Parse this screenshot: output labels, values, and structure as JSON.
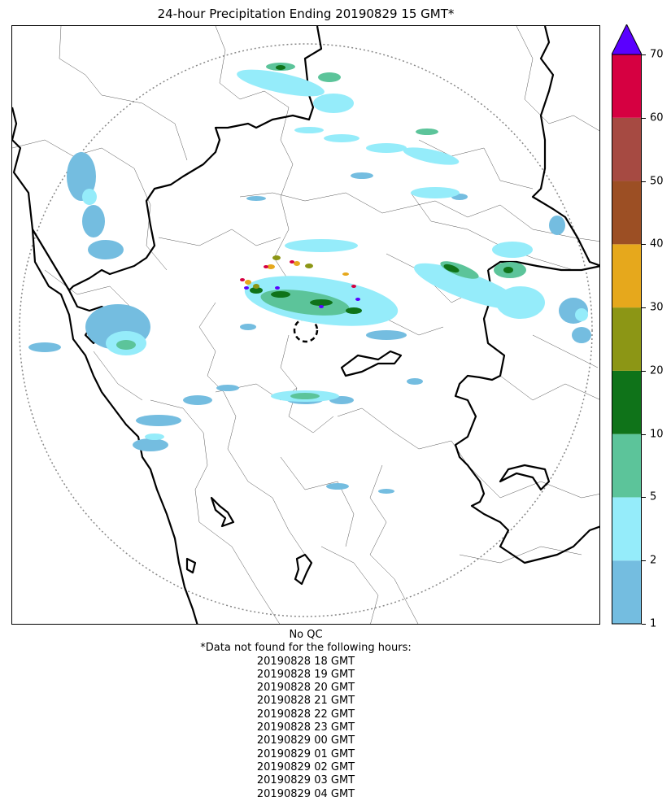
{
  "title": "24-hour Precipitation Ending 20190829 15 GMT*",
  "colorbar": {
    "levels": [
      "1",
      "2",
      "5",
      "10",
      "20",
      "30",
      "40",
      "50",
      "60",
      "70"
    ],
    "colors": [
      "#74bde0",
      "#95ecfa",
      "#5cc49a",
      "#0f7319",
      "#8c9615",
      "#e6a81c",
      "#9c4f24",
      "#a64a42",
      "#d60041"
    ],
    "extend_color": "#5a00ff"
  },
  "notes": {
    "qc": "No QC",
    "missing_header": "*Data not found for the following hours:",
    "missing_hours": [
      "20190828 18 GMT",
      "20190828 19 GMT",
      "20190828 20 GMT",
      "20190828 21 GMT",
      "20190828 22 GMT",
      "20190828 23 GMT",
      "20190829 00 GMT",
      "20190829 01 GMT",
      "20190829 02 GMT",
      "20190829 03 GMT",
      "20190829 04 GMT"
    ]
  }
}
